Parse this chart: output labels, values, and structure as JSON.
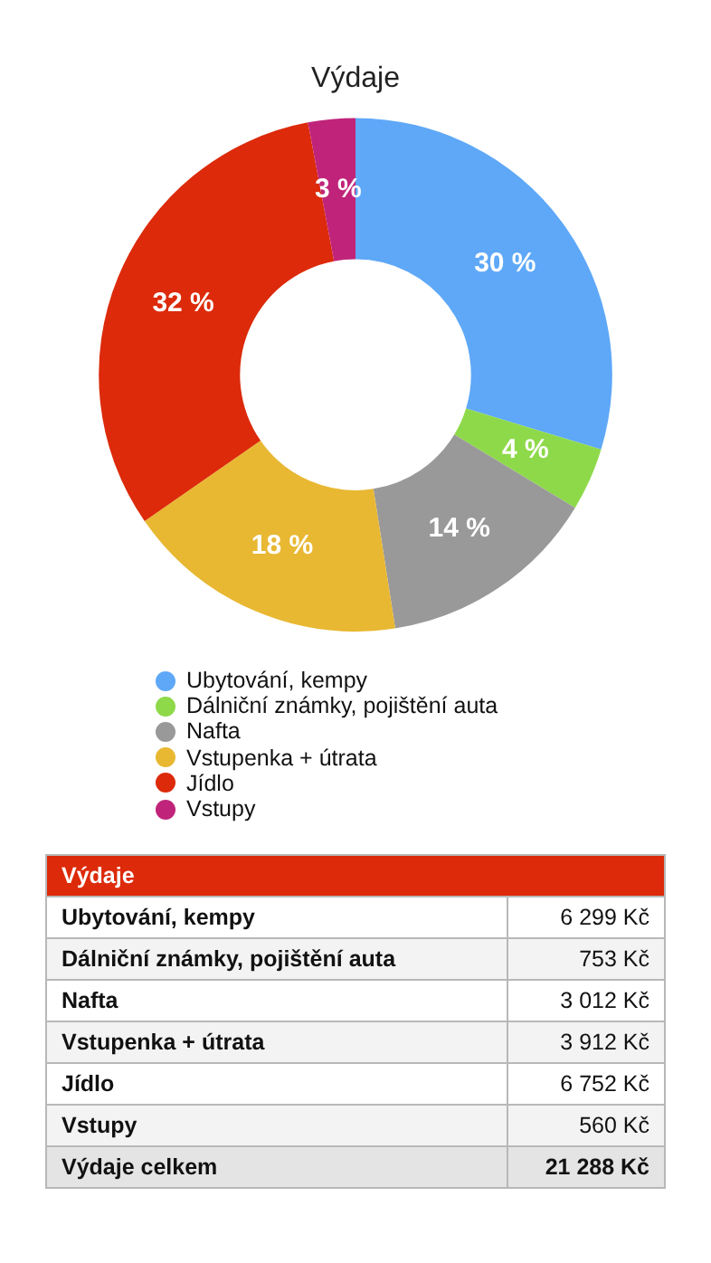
{
  "chart_data": [
    {
      "type": "donut",
      "title": "Výdaje",
      "categories": [
        "Ubytování, kempy",
        "Dálniční známky, pojištění auta",
        "Nafta",
        "Vstupenka + útrata",
        "Jídlo",
        "Vstupy"
      ],
      "values": [
        30,
        4,
        14,
        18,
        32,
        3
      ],
      "value_labels": [
        "30 %",
        "4 %",
        "14 %",
        "18 %",
        "32 %",
        "3 %"
      ],
      "colors": [
        "#5ea8f7",
        "#8ed94a",
        "#999999",
        "#e8b833",
        "#dc2a0a",
        "#c0247a"
      ],
      "legend": "bottom"
    },
    {
      "type": "other",
      "title": "Výdaje",
      "categories": [
        "Ubytování, kempy",
        "Dálniční známky, pojištění auta",
        "Nafta",
        "Vstupenka + útrata",
        "Jídlo",
        "Vstupy"
      ],
      "value_labels": [
        "6 299 Kč",
        "753 Kč",
        "3 012 Kč",
        "3 912 Kč",
        "6 752 Kč",
        "560 Kč"
      ],
      "annotations": [
        "Výdaje celkem",
        "21 288 Kč"
      ]
    }
  ]
}
